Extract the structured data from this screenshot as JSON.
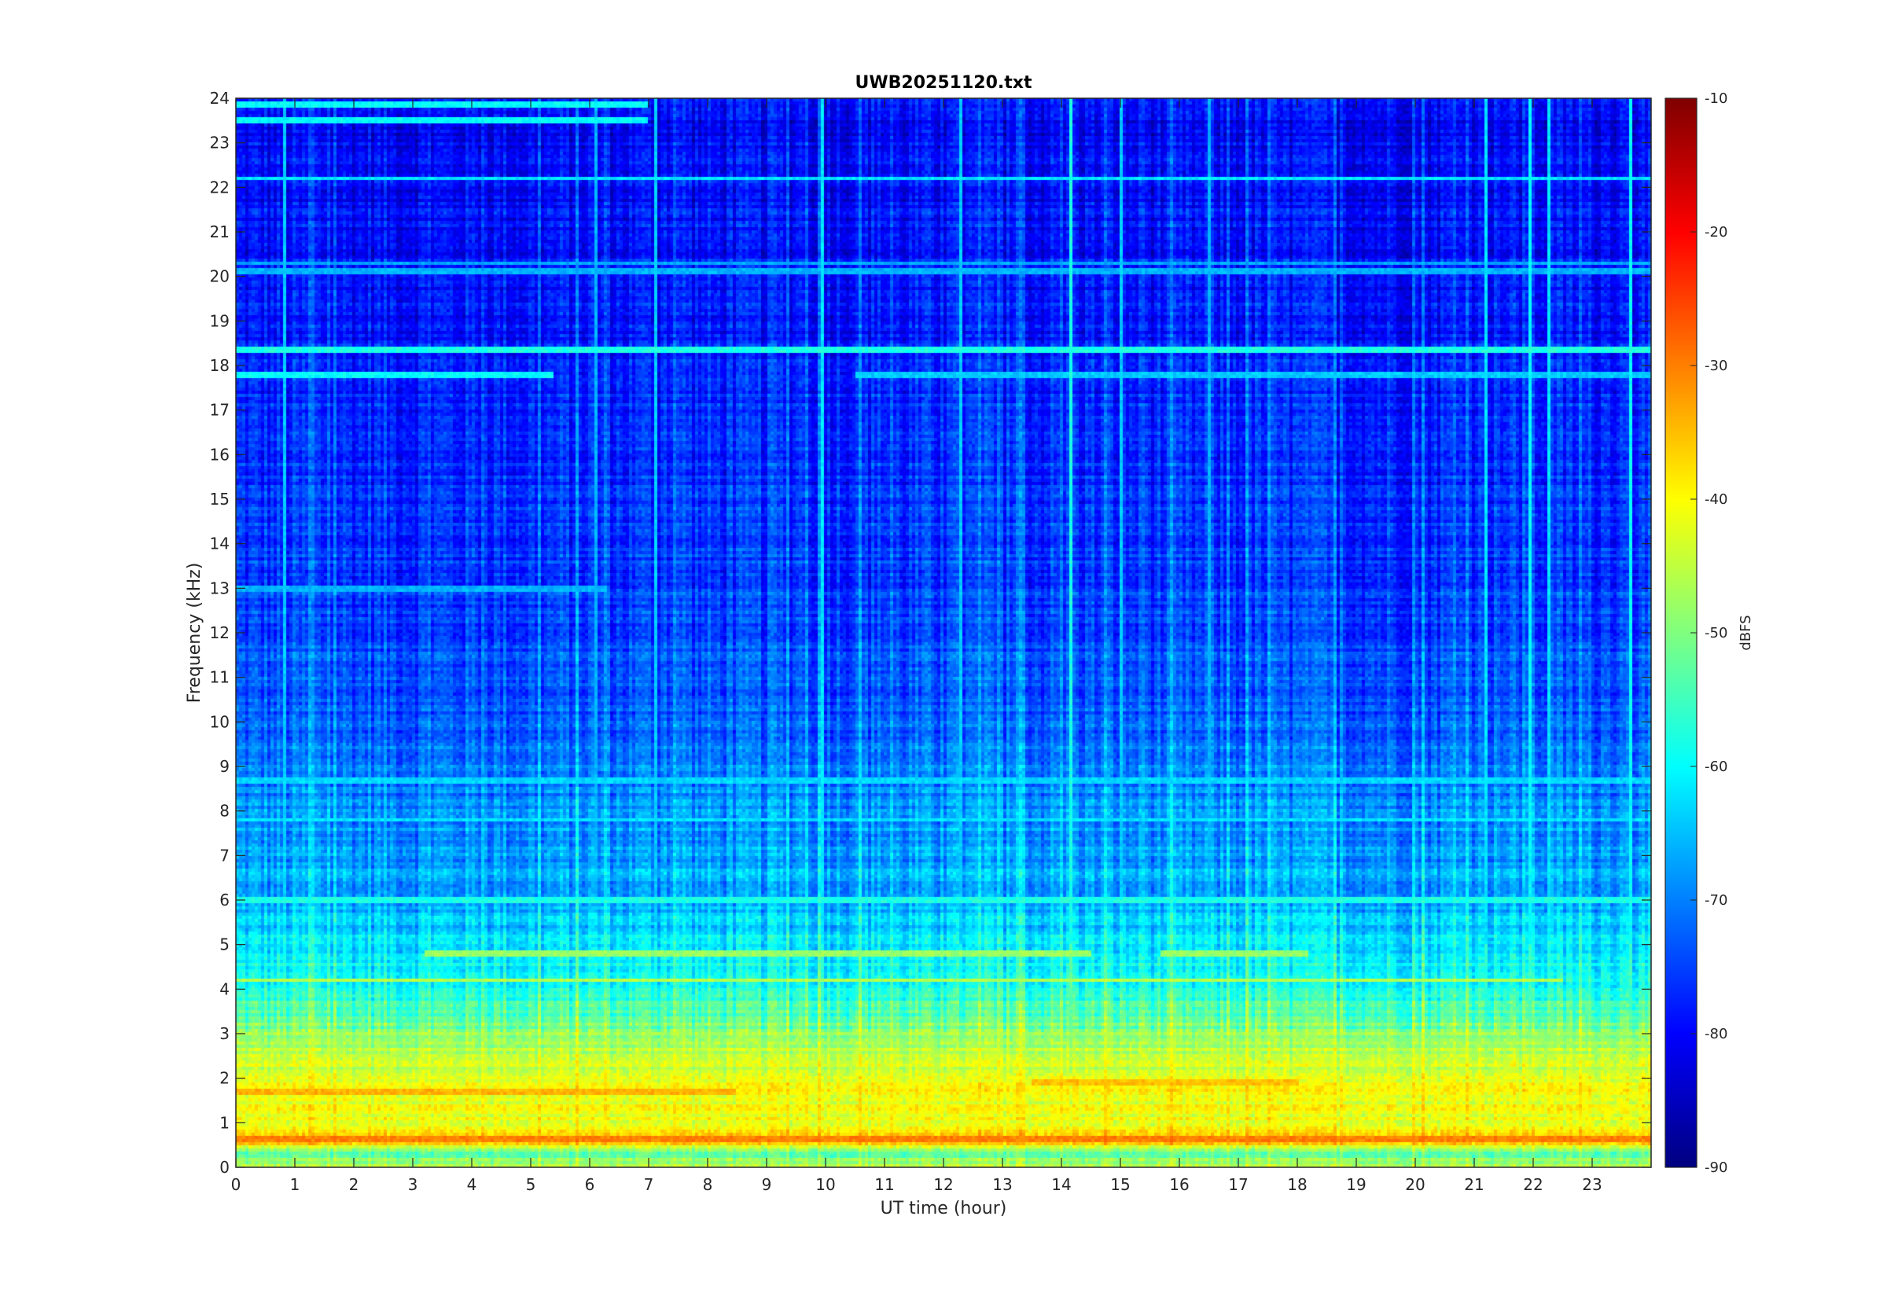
{
  "chart_data": {
    "type": "heatmap",
    "title": "UWB20251120.txt",
    "xlabel": "UT time (hour)",
    "ylabel": "Frequency (kHz)",
    "xlim": [
      0,
      24
    ],
    "ylim": [
      0,
      24
    ],
    "x_ticks": [
      0,
      1,
      2,
      3,
      4,
      5,
      6,
      7,
      8,
      9,
      10,
      11,
      12,
      13,
      14,
      15,
      16,
      17,
      18,
      19,
      20,
      21,
      22,
      23
    ],
    "y_ticks": [
      0,
      1,
      2,
      3,
      4,
      5,
      6,
      7,
      8,
      9,
      10,
      11,
      12,
      13,
      14,
      15,
      16,
      17,
      18,
      19,
      20,
      21,
      22,
      23,
      24
    ],
    "colorbar": {
      "label": "dBFS",
      "range": [
        -90,
        -10
      ],
      "ticks": [
        -90,
        -80,
        -70,
        -60,
        -50,
        -40,
        -30,
        -20,
        -10
      ],
      "colormap": "jet"
    },
    "level_profile": {
      "description_units": "frequency kHz -> typical level dBFS",
      "frequency_khz": [
        0,
        0.3,
        0.6,
        0.8,
        1.2,
        1.7,
        2.2,
        2.8,
        3.3,
        4.0,
        4.5,
        5.0,
        6.0,
        7.0,
        8.0,
        9.0,
        10.0,
        12.0,
        14.0,
        16.0,
        18.0,
        20.0,
        22.0,
        24.0
      ],
      "level_dbfs": [
        -45,
        -52,
        -33,
        -40,
        -42,
        -40,
        -44,
        -47,
        -52,
        -58,
        -60,
        -62,
        -66,
        -68,
        -69,
        -71,
        -73,
        -75,
        -76,
        -77,
        -78,
        -79,
        -80,
        -81
      ]
    },
    "horizontal_lines": [
      {
        "freq": 0.65,
        "level": -30,
        "t_start": 0,
        "t_end": 24
      },
      {
        "freq": 1.7,
        "level": -34,
        "t_start": 0,
        "t_end": 8.5
      },
      {
        "freq": 1.9,
        "level": -35,
        "t_start": 13.5,
        "t_end": 18.0
      },
      {
        "freq": 4.2,
        "level": -46,
        "t_start": 0,
        "t_end": 22.5
      },
      {
        "freq": 4.8,
        "level": -48,
        "t_start": 3.2,
        "t_end": 14.5
      },
      {
        "freq": 4.8,
        "level": -48,
        "t_start": 15.7,
        "t_end": 18.2
      },
      {
        "freq": 6.0,
        "level": -58,
        "t_start": 0,
        "t_end": 24
      },
      {
        "freq": 7.8,
        "level": -62,
        "t_start": 0,
        "t_end": 24
      },
      {
        "freq": 8.7,
        "level": -63,
        "t_start": 0,
        "t_end": 24
      },
      {
        "freq": 13.0,
        "level": -66,
        "t_start": 0,
        "t_end": 6.3
      },
      {
        "freq": 17.8,
        "level": -60,
        "t_start": 0,
        "t_end": 5.4
      },
      {
        "freq": 17.8,
        "level": -64,
        "t_start": 10.5,
        "t_end": 24
      },
      {
        "freq": 18.35,
        "level": -58,
        "t_start": 0,
        "t_end": 24
      },
      {
        "freq": 20.1,
        "level": -66,
        "t_start": 0,
        "t_end": 24
      },
      {
        "freq": 20.3,
        "level": -67,
        "t_start": 0,
        "t_end": 24
      },
      {
        "freq": 22.2,
        "level": -62,
        "t_start": 0,
        "t_end": 24
      },
      {
        "freq": 23.5,
        "level": -60,
        "t_start": 0,
        "t_end": 7.0
      },
      {
        "freq": 23.85,
        "level": -60,
        "t_start": 0,
        "t_end": 7.0
      }
    ],
    "vertical_lines": [
      {
        "time": 0.85,
        "level": -64
      },
      {
        "time": 6.1,
        "level": -66
      },
      {
        "time": 7.1,
        "level": -64
      },
      {
        "time": 9.95,
        "level": -62
      },
      {
        "time": 12.3,
        "level": -64
      },
      {
        "time": 14.15,
        "level": -58
      },
      {
        "time": 15.0,
        "level": -64
      },
      {
        "time": 16.5,
        "level": -66
      },
      {
        "time": 21.2,
        "level": -62
      },
      {
        "time": 21.95,
        "level": -60
      },
      {
        "time": 22.25,
        "level": -62
      },
      {
        "time": 23.65,
        "level": -60
      }
    ]
  }
}
